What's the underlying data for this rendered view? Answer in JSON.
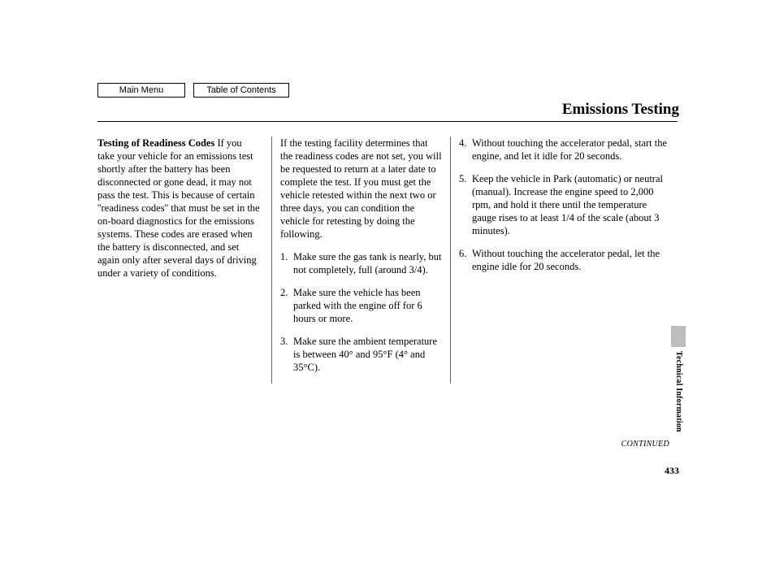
{
  "nav": {
    "main_menu": "Main Menu",
    "toc": "Table of Contents"
  },
  "title": "Emissions Testing",
  "col1": {
    "subhead": "Testing of Readiness Codes",
    "body": "If you take your vehicle for an emissions test shortly after the battery has been disconnected or gone dead, it may not pass the test. This is because of certain ''readiness codes'' that must be set in the on-board diagnostics for the emissions systems. These codes are erased when the battery is disconnected, and set again only after several days of driving under a variety of conditions."
  },
  "col2": {
    "intro": "If the testing facility determines that the readiness codes are not set, you will be requested to return at a later date to complete the test. If you must get the vehicle retested within the next two or three days, you can condition the vehicle for retesting by doing the following.",
    "steps": [
      {
        "n": "1.",
        "t": "Make sure the gas tank is nearly, but not completely, full (around 3/4)."
      },
      {
        "n": "2.",
        "t": "Make sure the vehicle has been parked with the engine off for 6 hours or more."
      },
      {
        "n": "3.",
        "t": "Make sure the ambient temperature is between 40° and 95°F (4° and 35°C)."
      }
    ]
  },
  "col3": {
    "steps": [
      {
        "n": "4.",
        "t": "Without touching the accelerator pedal, start the engine, and let it idle for 20 seconds."
      },
      {
        "n": "5.",
        "t": "Keep the vehicle in Park (automatic) or neutral (manual). Increase the engine speed to 2,000 rpm, and hold it there until the temperature gauge rises to at least 1/4 of the scale (about 3 minutes)."
      },
      {
        "n": "6.",
        "t": "Without touching the accelerator pedal, let the engine idle for 20 seconds."
      }
    ]
  },
  "side_label": "Technical Information",
  "continued": "CONTINUED",
  "page_number": "433"
}
